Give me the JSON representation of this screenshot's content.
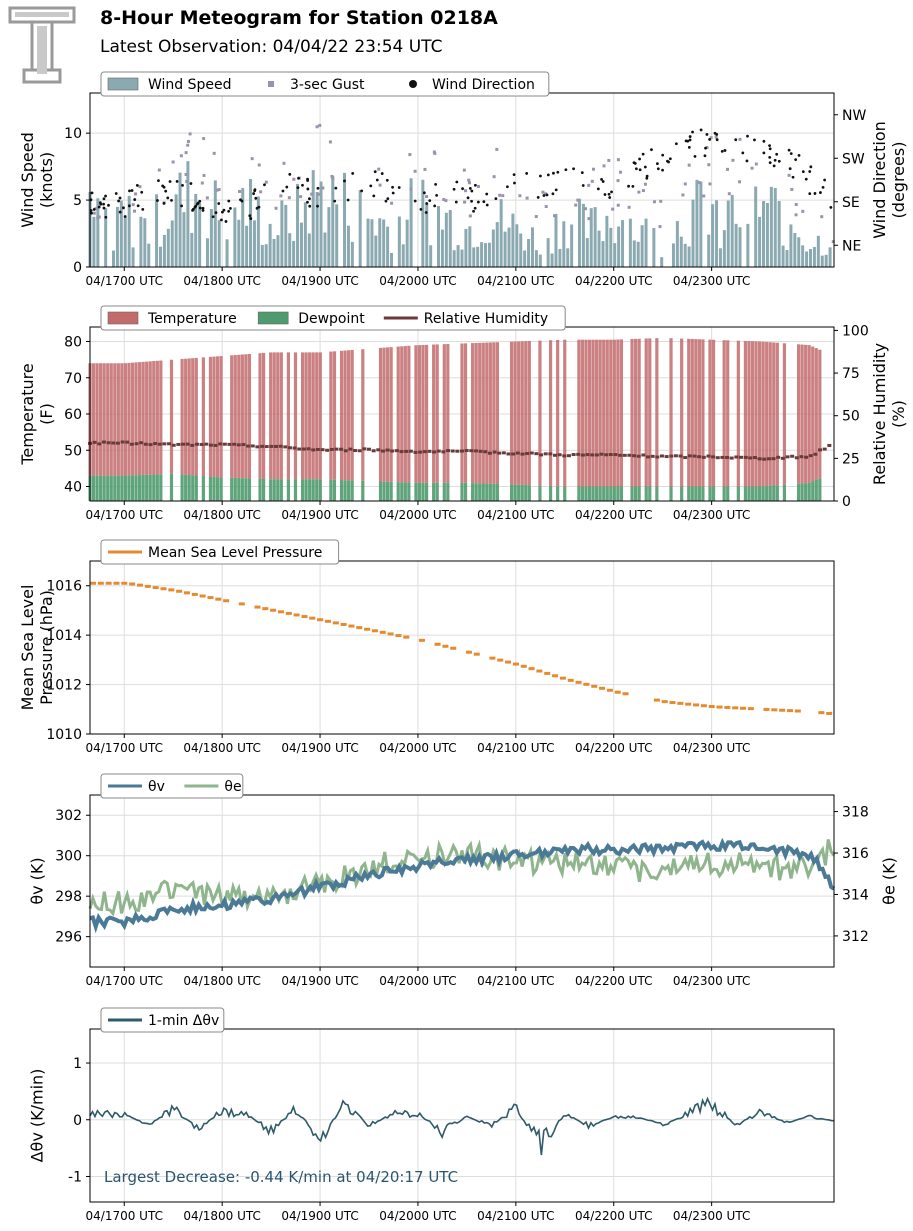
{
  "header": {
    "title": "8-Hour Meteogram for Station 0218A",
    "subtitle": "Latest Observation: 04/04/22 23:54 UTC",
    "logo_icon": "tt-logo-icon"
  },
  "time_ticks": [
    "04/1700 UTC",
    "04/1800 UTC",
    "04/1900 UTC",
    "04/2000 UTC",
    "04/2100 UTC",
    "04/2200 UTC",
    "04/2300 UTC"
  ],
  "colors": {
    "wind_speed": "#8ba9b0",
    "gust": "#9b93ad",
    "wind_dir": "#111111",
    "temperature": "#c26b6b",
    "dewpoint": "#4f9a6e",
    "rh": "#6b3a3a",
    "mslp": "#e58a2f",
    "theta_v": "#4a7a96",
    "theta_e": "#8fb58c",
    "dtheta": "#2f5a6a",
    "annotation": "#2a5570"
  },
  "chart_data": [
    {
      "id": "wind",
      "type": "area",
      "legend": [
        "Wind Speed",
        "3-sec Gust",
        "Wind Direction"
      ],
      "ylabel": "Wind Speed\n(knots)",
      "ylabel_right": "Wind Direction\n(degrees)",
      "ylim": [
        0,
        13
      ],
      "yticks": [
        0,
        5,
        10
      ],
      "right_ticks": [
        "NE",
        "SE",
        "SW",
        "NW"
      ],
      "right_tick_values": [
        45,
        135,
        225,
        315
      ],
      "right_lim": [
        0,
        360
      ],
      "series": [
        {
          "name": "Wind Speed",
          "type": "area",
          "x_hours": [
            0,
            0.25,
            0.5,
            0.75,
            1,
            1.25,
            1.5,
            1.75,
            2,
            2.25,
            2.5,
            2.75,
            3,
            3.25,
            3.5,
            3.75,
            4,
            4.25,
            4.5,
            4.75,
            5,
            5.25,
            5.5,
            5.75,
            6,
            6.25,
            6.5,
            6.75,
            7,
            7.25
          ],
          "values": [
            4,
            3,
            5,
            6,
            4,
            5,
            3,
            4,
            6,
            5,
            4,
            3,
            5,
            4,
            3,
            4,
            3,
            2,
            4,
            3,
            4,
            3,
            2,
            4,
            5,
            4,
            5,
            4,
            2,
            2
          ]
        },
        {
          "name": "3-sec Gust",
          "type": "scatter",
          "x_hours": [
            0,
            0.25,
            0.5,
            0.75,
            1,
            1.25,
            1.5,
            1.75,
            2,
            2.25,
            2.5,
            2.75,
            3,
            3.25,
            3.5,
            3.75,
            4,
            4.25,
            4.5,
            4.75,
            5,
            5.25,
            5.5,
            5.75,
            6,
            6.25,
            6.5,
            6.75,
            7,
            7.25
          ],
          "values": [
            6,
            5,
            8,
            9,
            7,
            8,
            6,
            7,
            9,
            10,
            8,
            6,
            8,
            7,
            6,
            8,
            6,
            5,
            7,
            6,
            7,
            6,
            4,
            7,
            9,
            8,
            8,
            7,
            4,
            3
          ]
        },
        {
          "name": "Wind Direction",
          "type": "scatter",
          "x_hours": [
            0,
            0.25,
            0.5,
            0.75,
            1,
            1.25,
            1.5,
            1.75,
            2,
            2.25,
            2.5,
            2.75,
            3,
            3.25,
            3.5,
            3.75,
            4,
            4.25,
            4.5,
            4.75,
            5,
            5.25,
            5.5,
            5.75,
            6,
            6.25,
            6.5,
            6.75,
            7,
            7.25
          ],
          "values": [
            130,
            150,
            160,
            140,
            110,
            120,
            150,
            170,
            140,
            160,
            180,
            150,
            130,
            160,
            140,
            150,
            170,
            160,
            190,
            180,
            170,
            200,
            230,
            250,
            260,
            250,
            240,
            230,
            180,
            140
          ]
        }
      ]
    },
    {
      "id": "temp",
      "type": "area",
      "legend": [
        "Temperature",
        "Dewpoint",
        "Relative Humidity"
      ],
      "ylabel": "Temperature\n(F)",
      "ylabel_right": "Relative Humidity\n(%)",
      "ylim": [
        36,
        84
      ],
      "yticks": [
        40,
        50,
        60,
        70,
        80
      ],
      "right_lim": [
        0,
        102
      ],
      "right_ticks": [
        0,
        25,
        50,
        75,
        100
      ],
      "series": [
        {
          "name": "Temperature",
          "x_hours": [
            0,
            0.5,
            1,
            1.5,
            2,
            2.5,
            3,
            3.5,
            4,
            4.5,
            5,
            5.5,
            6,
            6.5,
            7,
            7.25
          ],
          "values": [
            74,
            75,
            76,
            77,
            77,
            78,
            79,
            79.5,
            80,
            80.5,
            80.5,
            81,
            80.5,
            80,
            79,
            76
          ]
        },
        {
          "name": "Dewpoint",
          "x_hours": [
            0,
            0.5,
            1,
            1.5,
            2,
            2.5,
            3,
            3.5,
            4,
            4.5,
            5,
            5.5,
            6,
            6.5,
            7,
            7.25
          ],
          "values": [
            43,
            43.5,
            42.5,
            42,
            42,
            41.5,
            41,
            41,
            40.5,
            40,
            40,
            40,
            40,
            40,
            41,
            44
          ]
        },
        {
          "name": "Relative Humidity",
          "x_hours": [
            0,
            0.5,
            1,
            1.5,
            2,
            2.5,
            3,
            3.5,
            4,
            4.5,
            5,
            5.5,
            6,
            6.5,
            7,
            7.25
          ],
          "values": [
            34,
            33,
            33,
            32,
            30,
            30,
            29,
            29,
            28,
            27,
            27,
            26,
            26,
            25,
            26,
            34
          ]
        }
      ]
    },
    {
      "id": "mslp",
      "type": "line",
      "legend": [
        "Mean Sea Level Pressure"
      ],
      "ylabel": "Mean Sea Level\nPressure (hPa)",
      "ylim": [
        1010,
        1017
      ],
      "yticks": [
        1010,
        1012,
        1014,
        1016
      ],
      "series": [
        {
          "name": "Mean Sea Level Pressure",
          "x_hours": [
            0,
            0.5,
            1,
            1.5,
            2,
            2.5,
            3,
            3.5,
            4,
            4.5,
            5,
            5.5,
            6,
            6.5,
            7,
            7.25
          ],
          "values": [
            1016.1,
            1015.8,
            1015.4,
            1015.0,
            1014.6,
            1014.2,
            1013.8,
            1013.3,
            1012.8,
            1012.2,
            1011.7,
            1011.3,
            1011.1,
            1011.0,
            1010.9,
            1010.8
          ]
        }
      ]
    },
    {
      "id": "theta",
      "type": "line",
      "legend": [
        "θv",
        "θe"
      ],
      "ylabel": "θv (K)",
      "ylabel_right": "θe (K)",
      "ylim": [
        294.5,
        303
      ],
      "yticks": [
        296,
        298,
        300,
        302
      ],
      "right_lim": [
        310.5,
        318.8
      ],
      "right_ticks": [
        312,
        314,
        316,
        318
      ],
      "series": [
        {
          "name": "θv",
          "x_hours": [
            0,
            0.5,
            1,
            1.5,
            2,
            2.5,
            3,
            3.5,
            4,
            4.5,
            5,
            5.5,
            6,
            6.5,
            7,
            7.25
          ],
          "values": [
            296.7,
            297.4,
            297.6,
            297.8,
            298.5,
            299.0,
            299.5,
            299.8,
            300.0,
            300.3,
            300.3,
            300.4,
            300.5,
            300.4,
            300.1,
            298.5
          ]
        },
        {
          "name": "θe",
          "x_hours": [
            0,
            0.5,
            1,
            1.5,
            2,
            2.5,
            3,
            3.5,
            4,
            4.5,
            5,
            5.5,
            6,
            6.5,
            7,
            7.25
          ],
          "values": [
            313.6,
            314.2,
            314.0,
            313.9,
            314.5,
            315.3,
            315.9,
            315.9,
            315.6,
            315.6,
            315.2,
            315.2,
            315.5,
            315.4,
            315.1,
            316.4
          ]
        }
      ]
    },
    {
      "id": "dtheta",
      "type": "line",
      "legend": [
        "1-min Δθv"
      ],
      "ylabel": "Δθv (K/min)",
      "ylim": [
        -1.45,
        1.6
      ],
      "yticks": [
        -1,
        0,
        1
      ],
      "annotation": "Largest Decrease: -0.44 K/min at 04/20:17 UTC",
      "series": [
        {
          "name": "1-min Δθv",
          "x_hours": [
            0,
            0.25,
            0.5,
            0.75,
            1,
            1.25,
            1.5,
            1.75,
            2,
            2.25,
            2.5,
            2.75,
            3,
            3.25,
            3.5,
            3.75,
            4,
            4.25,
            4.5,
            4.75,
            5,
            5.25,
            5.5,
            5.75,
            6,
            6.25,
            6.5,
            6.75,
            7,
            7.25
          ],
          "values": [
            0.1,
            -0.1,
            0.2,
            -0.15,
            0.15,
            0.1,
            -0.2,
            0.2,
            -0.35,
            0.3,
            -0.1,
            0.1,
            0.1,
            -0.2,
            0.05,
            -0.1,
            0.2,
            -0.44,
            0.1,
            -0.1,
            0.05,
            0.05,
            -0.1,
            0.1,
            0.3,
            -0.1,
            0.15,
            -0.05,
            0.05,
            -0.02
          ]
        }
      ]
    }
  ]
}
